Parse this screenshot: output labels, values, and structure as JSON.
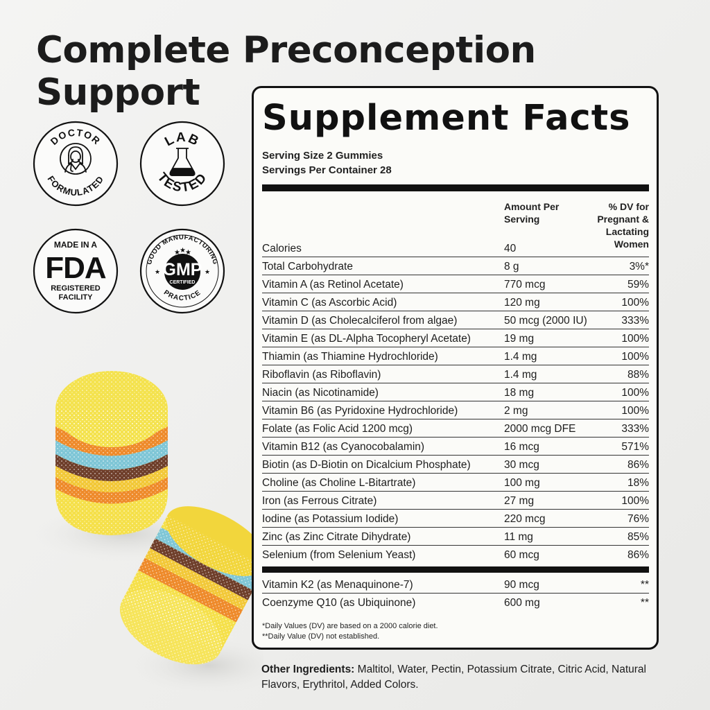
{
  "headline": "Complete Preconception Support",
  "badges": {
    "doctor": {
      "line1": "DOCTOR",
      "line2": "FORMULATED",
      "icon": "doctor-icon"
    },
    "lab": {
      "line1": "LAB",
      "line2": "TESTED",
      "icon": "flask-icon"
    },
    "fda": {
      "top": "MADE IN A",
      "mid": "FDA",
      "bottom1": "REGISTERED",
      "bottom2": "FACILITY"
    },
    "gmp": {
      "arc_top": "GOOD MANUFACTURING",
      "mid": "GMP",
      "sub": "CERTIFIED",
      "arc_bottom": "PRACTICE"
    }
  },
  "facts": {
    "title": "Supplement Facts",
    "serving_size": "Serving Size 2 Gummies",
    "servings_per_container": "Servings Per Container 28",
    "col_amount_1": "Amount Per",
    "col_amount_2": "Serving",
    "col_dv_1": "% DV for",
    "col_dv_2": "Pregnant &",
    "col_dv_3": "Lactating",
    "col_dv_4": "Women",
    "rows": [
      {
        "name": "Calories",
        "amount": "40",
        "dv": ""
      },
      {
        "name": "Total Carbohydrate",
        "amount": "8 g",
        "dv": "3%*"
      },
      {
        "name": "Vitamin A (as Retinol Acetate)",
        "amount": "770 mcg",
        "dv": "59%"
      },
      {
        "name": "Vitamin C (as Ascorbic Acid)",
        "amount": "120 mg",
        "dv": "100%"
      },
      {
        "name": "Vitamin D (as Cholecalciferol from algae)",
        "amount": "50 mcg (2000 IU)",
        "dv": "333%"
      },
      {
        "name": "Vitamin E (as DL-Alpha Tocopheryl Acetate)",
        "amount": "19 mg",
        "dv": "100%"
      },
      {
        "name": "Thiamin (as Thiamine Hydrochloride)",
        "amount": "1.4 mg",
        "dv": "100%"
      },
      {
        "name": "Riboflavin (as Riboflavin)",
        "amount": "1.4 mg",
        "dv": "88%"
      },
      {
        "name": "Niacin (as Nicotinamide)",
        "amount": "18 mg",
        "dv": "100%"
      },
      {
        "name": "Vitamin B6 (as Pyridoxine Hydrochloride)",
        "amount": "2 mg",
        "dv": "100%"
      },
      {
        "name": "Folate (as Folic Acid 1200 mcg)",
        "amount": "2000 mcg DFE",
        "dv": "333%"
      },
      {
        "name": "Vitamin B12 (as Cyanocobalamin)",
        "amount": "16 mcg",
        "dv": "571%"
      },
      {
        "name": "Biotin (as D-Biotin on Dicalcium Phosphate)",
        "amount": "30 mcg",
        "dv": "86%"
      },
      {
        "name": "Choline (as Choline L-Bitartrate)",
        "amount": "100 mg",
        "dv": "18%"
      },
      {
        "name": "Iron (as Ferrous Citrate)",
        "amount": "27 mg",
        "dv": "100%"
      },
      {
        "name": "Iodine (as Potassium Iodide)",
        "amount": "220 mcg",
        "dv": "76%"
      },
      {
        "name": "Zinc (as Zinc Citrate Dihydrate)",
        "amount": "11 mg",
        "dv": "85%"
      },
      {
        "name": "Selenium (from Selenium Yeast)",
        "amount": "60 mcg",
        "dv": "86%"
      }
    ],
    "extra_rows": [
      {
        "name": "Vitamin K2 (as Menaquinone-7)",
        "amount": "90 mcg",
        "dv": "**"
      },
      {
        "name": "Coenzyme Q10 (as Ubiquinone)",
        "amount": "600 mg",
        "dv": "**"
      }
    ],
    "footnote_1": "*Daily Values (DV) are based on a 2000 calorie diet.",
    "footnote_2": "**Daily Value (DV) not established."
  },
  "other_ingredients": {
    "label": "Other Ingredients:",
    "text": " Maltitol, Water, Pectin, Potassium Citrate, Citric Acid, Natural Flavors, Erythritol, Added Colors."
  },
  "colors": {
    "ink": "#111111",
    "panel_bg": "#fbfbf8",
    "gummy_yellow": "#f3dc3c",
    "gummy_orange": "#ee8a2a",
    "gummy_blue": "#7fc6d6",
    "gummy_brown": "#6e3e2a"
  }
}
